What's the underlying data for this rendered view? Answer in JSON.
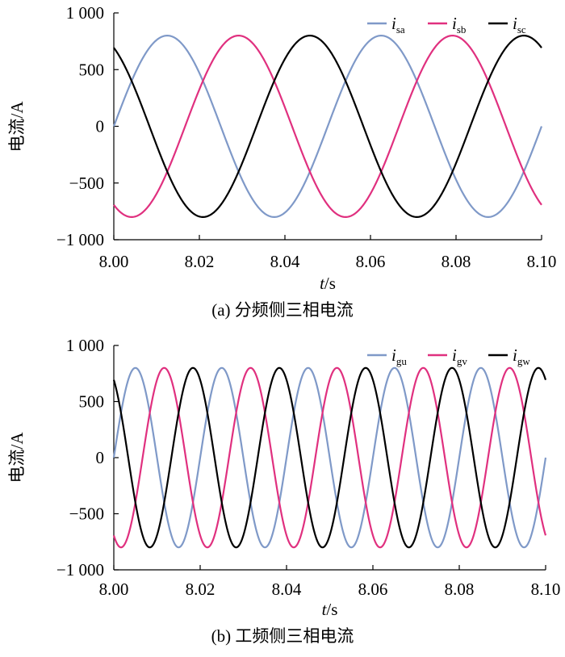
{
  "charts": [
    {
      "caption": "(a)  分频侧三相电流",
      "chart_data": {
        "type": "line",
        "title": "",
        "xlabel": "t/s",
        "ylabel": "电流/A",
        "xlim": [
          8.0,
          8.1
        ],
        "ylim": [
          -1000,
          1000
        ],
        "xticks": [
          8.0,
          8.02,
          8.04,
          8.06,
          8.08,
          8.1
        ],
        "xtick_labels": [
          "8.00",
          "8.02",
          "8.04",
          "8.06",
          "8.08",
          "8.10"
        ],
        "yticks": [
          1000,
          500,
          0,
          -500,
          -1000
        ],
        "ytick_labels": [
          "1 000",
          "500",
          "0",
          "−500",
          "−1 000"
        ],
        "grid": false,
        "legend_position": "top-right",
        "frequency_hz": 20,
        "amplitude": 800,
        "series": [
          {
            "name": "i",
            "subscript": "sa",
            "color": "#7f99c8",
            "phase_deg": 0
          },
          {
            "name": "i",
            "subscript": "sb",
            "color": "#e0307f",
            "phase_deg": -120
          },
          {
            "name": "i",
            "subscript": "sc",
            "color": "#000000",
            "phase_deg": 120
          }
        ]
      }
    },
    {
      "caption": "(b)  工频侧三相电流",
      "chart_data": {
        "type": "line",
        "title": "",
        "xlabel": "t/s",
        "ylabel": "电流/A",
        "xlim": [
          8.0,
          8.1
        ],
        "ylim": [
          -1000,
          1000
        ],
        "xticks": [
          8.0,
          8.02,
          8.04,
          8.06,
          8.08,
          8.1
        ],
        "xtick_labels": [
          "8.00",
          "8.02",
          "8.04",
          "8.06",
          "8.08",
          "8.10"
        ],
        "yticks": [
          1000,
          500,
          0,
          -500,
          -1000
        ],
        "ytick_labels": [
          "1 000",
          "500",
          "0",
          "−500",
          "−1 000"
        ],
        "grid": false,
        "legend_position": "top-right",
        "frequency_hz": 50,
        "amplitude": 800,
        "series": [
          {
            "name": "i",
            "subscript": "gu",
            "color": "#7f99c8",
            "phase_deg": 0
          },
          {
            "name": "i",
            "subscript": "gv",
            "color": "#e0307f",
            "phase_deg": -120
          },
          {
            "name": "i",
            "subscript": "gw",
            "color": "#000000",
            "phase_deg": 120
          }
        ]
      }
    }
  ]
}
